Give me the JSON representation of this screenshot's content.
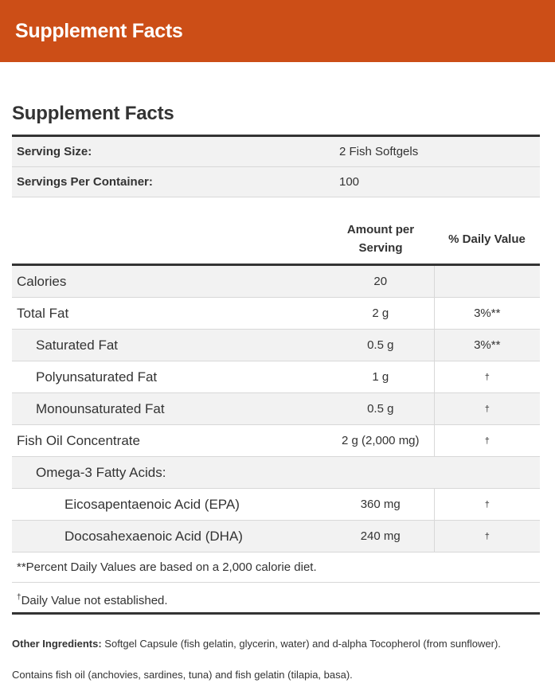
{
  "header": {
    "title": "Supplement Facts"
  },
  "section_title": "Supplement Facts",
  "serving": [
    {
      "label": "Serving Size:",
      "value": "2 Fish Softgels"
    },
    {
      "label": "Servings Per Container:",
      "value": "100"
    }
  ],
  "columns": {
    "amount_line1": "Amount per",
    "amount_line2": "Serving",
    "dv": "% Daily Value"
  },
  "rows": [
    {
      "name": "Calories",
      "amount": "20",
      "dv": ""
    },
    {
      "name": "Total Fat",
      "amount": "2 g",
      "dv": "3%**"
    },
    {
      "name": "Saturated Fat",
      "amount": "0.5 g",
      "dv": "3%**"
    },
    {
      "name": "Polyunsaturated Fat",
      "amount": "1 g",
      "dv": "†"
    },
    {
      "name": "Monounsaturated Fat",
      "amount": "0.5 g",
      "dv": "†"
    },
    {
      "name": "Fish Oil Concentrate",
      "amount": "2 g (2,000 mg)",
      "dv": "†"
    },
    {
      "name": "Omega-3 Fatty Acids:",
      "amount": "",
      "dv": ""
    },
    {
      "name": "Eicosapentaenoic Acid (EPA)",
      "amount": "360 mg",
      "dv": "†"
    },
    {
      "name": "Docosahexaenoic Acid (DHA)",
      "amount": "240 mg",
      "dv": "†"
    }
  ],
  "footnotes": {
    "percent": "**Percent Daily Values are based on a 2,000 calorie diet.",
    "dagger_symbol": "†",
    "dagger_text": "Daily Value not established."
  },
  "other_ingredients": {
    "label": "Other Ingredients:",
    "text": " Softgel Capsule (fish gelatin, glycerin, water) and d-alpha Tocopherol (from sunflower)."
  },
  "contains": "Contains fish oil (anchovies, sardines, tuna) and fish gelatin (tilapia, basa).",
  "colors": {
    "header_bg": "#cc4e17",
    "rule": "#333333",
    "stripe": "#f2f2f2"
  }
}
